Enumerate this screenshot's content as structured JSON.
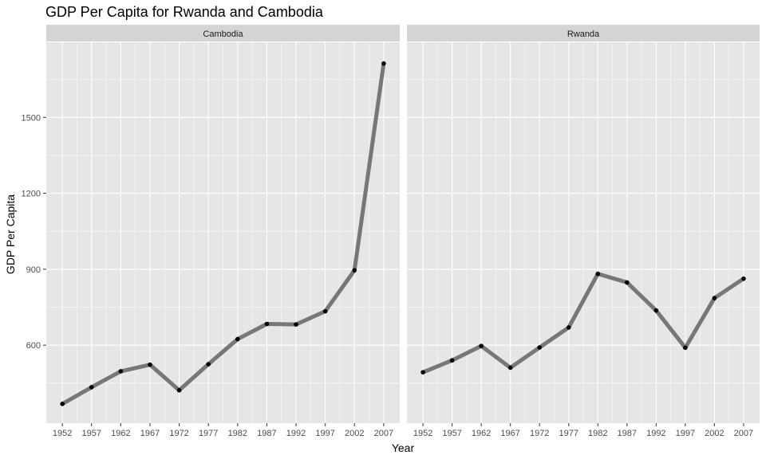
{
  "chart_data": {
    "type": "line",
    "title": "GDP Per Capita for Rwanda and Cambodia",
    "xlabel": "Year",
    "ylabel": "GDP Per Capita",
    "x": [
      1952,
      1957,
      1962,
      1967,
      1972,
      1977,
      1982,
      1987,
      1992,
      1997,
      2002,
      2007
    ],
    "x_ticks": [
      "1952",
      "1957",
      "1962",
      "1967",
      "1972",
      "1977",
      "1982",
      "1987",
      "1992",
      "1997",
      "2002",
      "2007"
    ],
    "y_ticks": [
      600,
      900,
      1200,
      1500
    ],
    "y_tick_labels": [
      "600",
      "900",
      "1200",
      "1500"
    ],
    "xlim": [
      1949.25,
      2009.75
    ],
    "ylim": [
      292,
      1797
    ],
    "grid": true,
    "facets": [
      {
        "label": "Cambodia",
        "values": [
          368,
          434,
          497,
          523,
          422,
          525,
          624,
          684,
          682,
          734,
          896,
          1713
        ]
      },
      {
        "label": "Rwanda",
        "values": [
          493,
          540,
          597,
          511,
          591,
          670,
          882,
          848,
          737,
          590,
          786,
          863
        ]
      }
    ],
    "colors": {
      "line": "#777777",
      "point": "#000000",
      "panel": "#e6e6e6",
      "strip": "#d4d4d4",
      "grid": "#ffffff"
    }
  }
}
